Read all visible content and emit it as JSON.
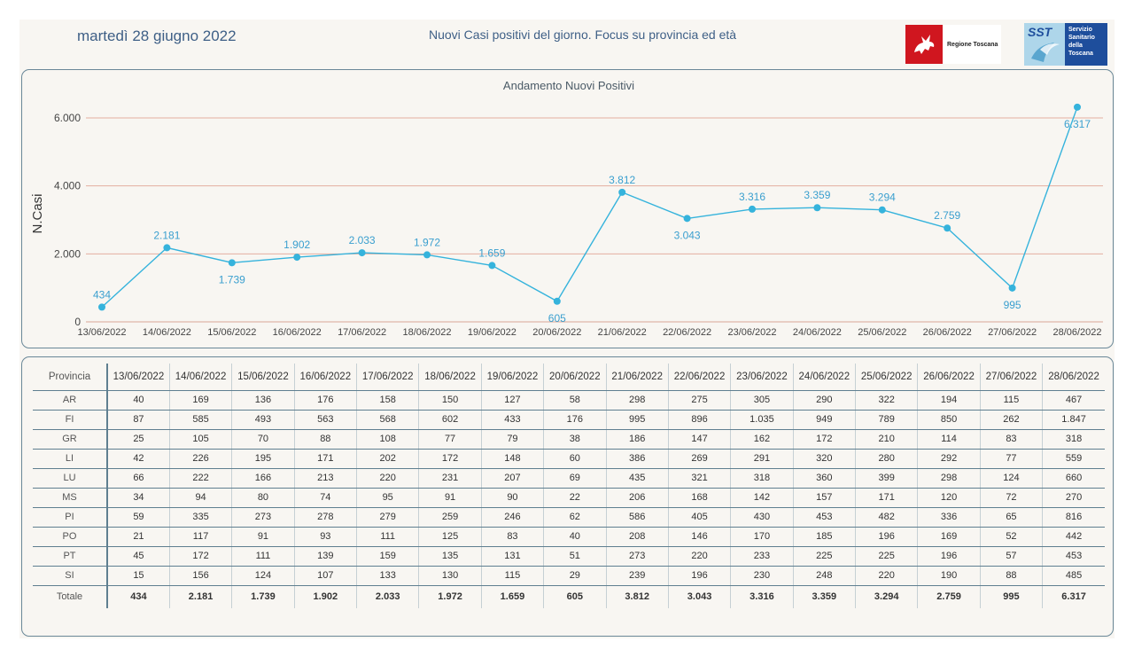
{
  "header": {
    "date": "martedì 28 giugno 2022",
    "title": "Nuovi Casi positivi del giorno. Focus su provincia ed età",
    "logo_regione_label": "Regione Toscana",
    "logo_sst_mark": "SST",
    "logo_sst_lines": [
      "Servizio",
      "Sanitario",
      "della",
      "Toscana"
    ]
  },
  "colors": {
    "line": "#35b3dc",
    "label": "#3a9fcf",
    "grid": "#e3aea0",
    "title": "#3e5f86"
  },
  "chart_data": {
    "type": "line",
    "title": "Andamento Nuovi Positivi",
    "xlabel": "",
    "ylabel": "N.Casi",
    "ylim": [
      0,
      6000
    ],
    "yticks": [
      "0",
      "2.000",
      "4.000",
      "6.000"
    ],
    "ytick_values": [
      0,
      2000,
      4000,
      6000
    ],
    "grid": true,
    "categories": [
      "13/06/2022",
      "14/06/2022",
      "15/06/2022",
      "16/06/2022",
      "17/06/2022",
      "18/06/2022",
      "19/06/2022",
      "20/06/2022",
      "21/06/2022",
      "22/06/2022",
      "23/06/2022",
      "24/06/2022",
      "25/06/2022",
      "26/06/2022",
      "27/06/2022",
      "28/06/2022"
    ],
    "values": [
      434,
      2181,
      1739,
      1902,
      2033,
      1972,
      1659,
      605,
      3812,
      3043,
      3316,
      3359,
      3294,
      2759,
      995,
      6317
    ],
    "value_labels": [
      "434",
      "2.181",
      "1.739",
      "1.902",
      "2.033",
      "1.972",
      "1.659",
      "605",
      "3.812",
      "3.043",
      "3.316",
      "3.359",
      "3.294",
      "2.759",
      "995",
      "6.317"
    ],
    "label_position": [
      "above",
      "above",
      "below",
      "above",
      "above",
      "above",
      "above",
      "below",
      "above",
      "below",
      "above",
      "above",
      "above",
      "above",
      "below",
      "below"
    ]
  },
  "table": {
    "header_label": "Provincia",
    "columns": [
      "13/06/2022",
      "14/06/2022",
      "15/06/2022",
      "16/06/2022",
      "17/06/2022",
      "18/06/2022",
      "19/06/2022",
      "20/06/2022",
      "21/06/2022",
      "22/06/2022",
      "23/06/2022",
      "24/06/2022",
      "25/06/2022",
      "26/06/2022",
      "27/06/2022",
      "28/06/2022"
    ],
    "rows": [
      {
        "name": "AR",
        "values": [
          "40",
          "169",
          "136",
          "176",
          "158",
          "150",
          "127",
          "58",
          "298",
          "275",
          "305",
          "290",
          "322",
          "194",
          "115",
          "467"
        ]
      },
      {
        "name": "FI",
        "values": [
          "87",
          "585",
          "493",
          "563",
          "568",
          "602",
          "433",
          "176",
          "995",
          "896",
          "1.035",
          "949",
          "789",
          "850",
          "262",
          "1.847"
        ]
      },
      {
        "name": "GR",
        "values": [
          "25",
          "105",
          "70",
          "88",
          "108",
          "77",
          "79",
          "38",
          "186",
          "147",
          "162",
          "172",
          "210",
          "114",
          "83",
          "318"
        ]
      },
      {
        "name": "LI",
        "values": [
          "42",
          "226",
          "195",
          "171",
          "202",
          "172",
          "148",
          "60",
          "386",
          "269",
          "291",
          "320",
          "280",
          "292",
          "77",
          "559"
        ]
      },
      {
        "name": "LU",
        "values": [
          "66",
          "222",
          "166",
          "213",
          "220",
          "231",
          "207",
          "69",
          "435",
          "321",
          "318",
          "360",
          "399",
          "298",
          "124",
          "660"
        ]
      },
      {
        "name": "MS",
        "values": [
          "34",
          "94",
          "80",
          "74",
          "95",
          "91",
          "90",
          "22",
          "206",
          "168",
          "142",
          "157",
          "171",
          "120",
          "72",
          "270"
        ]
      },
      {
        "name": "PI",
        "values": [
          "59",
          "335",
          "273",
          "278",
          "279",
          "259",
          "246",
          "62",
          "586",
          "405",
          "430",
          "453",
          "482",
          "336",
          "65",
          "816"
        ]
      },
      {
        "name": "PO",
        "values": [
          "21",
          "117",
          "91",
          "93",
          "111",
          "125",
          "83",
          "40",
          "208",
          "146",
          "170",
          "185",
          "196",
          "169",
          "52",
          "442"
        ]
      },
      {
        "name": "PT",
        "values": [
          "45",
          "172",
          "111",
          "139",
          "159",
          "135",
          "131",
          "51",
          "273",
          "220",
          "233",
          "225",
          "225",
          "196",
          "57",
          "453"
        ]
      },
      {
        "name": "SI",
        "values": [
          "15",
          "156",
          "124",
          "107",
          "133",
          "130",
          "115",
          "29",
          "239",
          "196",
          "230",
          "248",
          "220",
          "190",
          "88",
          "485"
        ]
      }
    ],
    "total": {
      "name": "Totale",
      "values": [
        "434",
        "2.181",
        "1.739",
        "1.902",
        "2.033",
        "1.972",
        "1.659",
        "605",
        "3.812",
        "3.043",
        "3.316",
        "3.359",
        "3.294",
        "2.759",
        "995",
        "6.317"
      ]
    }
  }
}
